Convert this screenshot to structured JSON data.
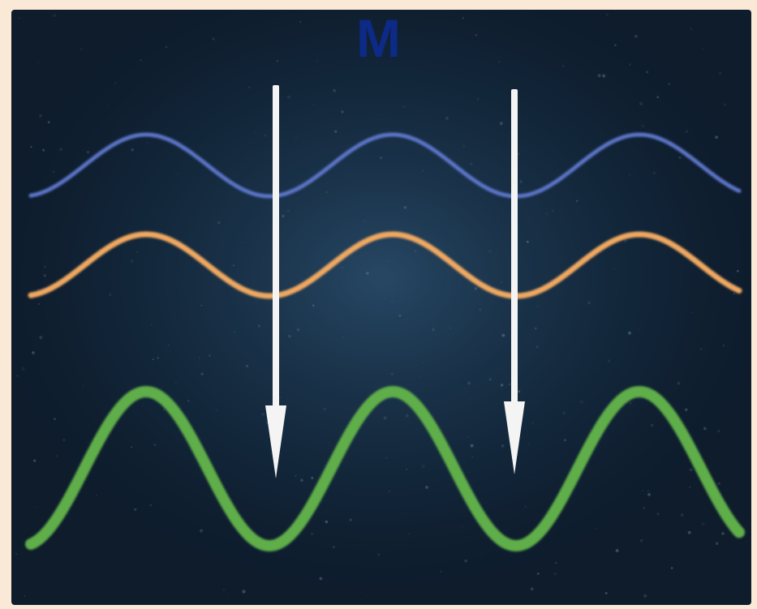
{
  "label": "M",
  "colors": {
    "wave_top": "#5b74c8",
    "wave_middle": "#f0a860",
    "wave_bottom": "#5fae4a",
    "arrows": "#f4f4f4",
    "label": "#0d2a86"
  },
  "waves": [
    {
      "id": "top",
      "amplitude": 1,
      "phase": "in-phase"
    },
    {
      "id": "middle",
      "amplitude": 1,
      "phase": "in-phase"
    },
    {
      "id": "bottom",
      "amplitude": 2.5,
      "phase": "in-phase"
    }
  ],
  "arrows": [
    {
      "id": "left",
      "direction": "down"
    },
    {
      "id": "right",
      "direction": "down"
    }
  ]
}
